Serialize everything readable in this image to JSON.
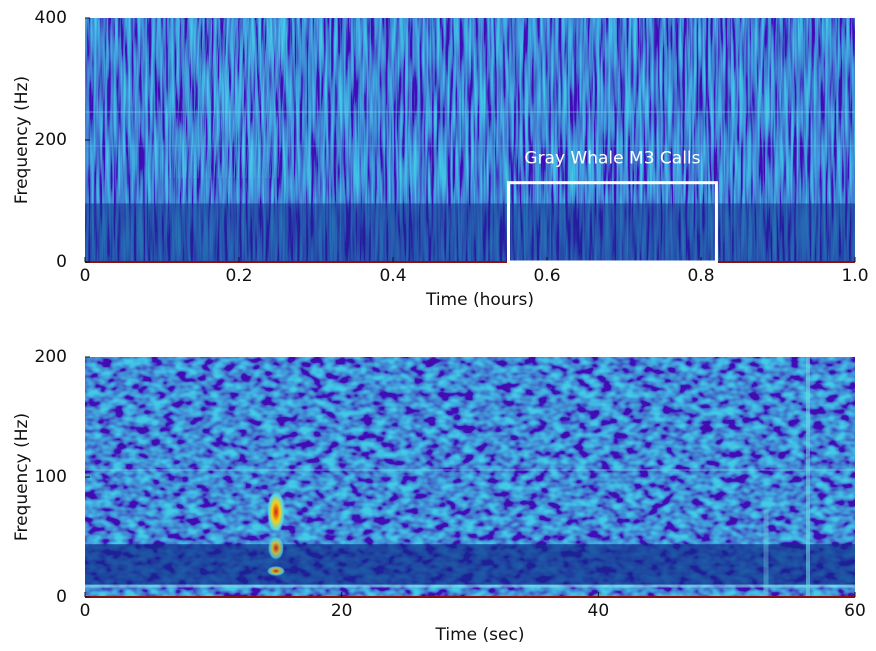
{
  "chart_data": [
    {
      "type": "spectrogram",
      "xlabel": "Time (hours)",
      "ylabel": "Frequency (Hz)",
      "xlim": [
        0,
        1
      ],
      "ylim": [
        0,
        400
      ],
      "xticks": [
        0,
        0.2,
        0.4,
        0.6,
        0.8,
        {
          "value": 1,
          "label": "1.0"
        }
      ],
      "yticks": [
        0,
        200,
        400
      ],
      "annotation": {
        "text": "Gray Whale M3 Calls",
        "xlim": [
          0.55,
          0.82
        ],
        "ylim": [
          0,
          130
        ]
      }
    },
    {
      "type": "spectrogram",
      "xlabel": "Time (sec)",
      "ylabel": "Frequency (Hz)",
      "xlim": [
        0,
        60
      ],
      "ylim": [
        0,
        200
      ],
      "xticks": [
        0,
        20,
        40,
        60
      ],
      "yticks": [
        0,
        100,
        200
      ]
    }
  ]
}
